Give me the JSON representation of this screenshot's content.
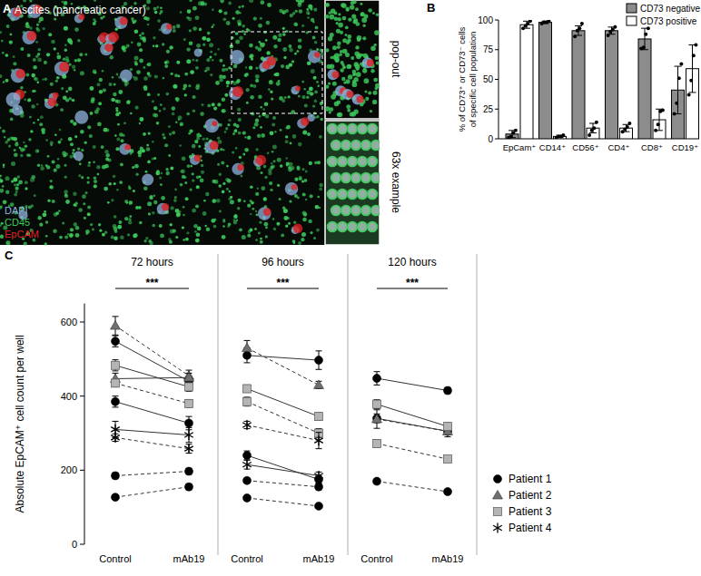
{
  "image_panel": {
    "letter": "A",
    "title": "Ascites (pancreatic cancer)",
    "insets": [
      "pop-out",
      "63x example"
    ],
    "stains": [
      {
        "label": "DAPI",
        "color": "#8fb4e0"
      },
      {
        "label": "CD45",
        "color": "#3cc85a"
      },
      {
        "label": "EpCAM",
        "color": "#e02020"
      }
    ]
  },
  "chart_data": [
    {
      "type": "bar",
      "panel": "B",
      "ylabel": [
        "% of CD73⁺ or CD73⁻ cells",
        "of specific cell population"
      ],
      "categories": [
        "EpCam⁺",
        "CD14⁺",
        "CD56⁺",
        "CD4⁺",
        "CD8⁺",
        "CD19⁺"
      ],
      "ylim": [
        0,
        100
      ],
      "yticks": [
        0,
        25,
        50,
        75,
        100
      ],
      "grid": false,
      "legend": "top-right",
      "series": [
        {
          "name": "CD73 negative",
          "color": "#8c8c8c",
          "values": [
            4,
            98,
            91,
            91,
            84,
            41
          ],
          "errors": [
            3,
            1,
            4,
            3,
            9,
            20
          ],
          "points": [
            [
              1,
              2,
              5,
              7
            ],
            [
              97,
              98,
              98,
              99
            ],
            [
              86,
              91,
              93,
              97
            ],
            [
              87,
              90,
              92,
              94
            ],
            [
              76,
              77,
              88,
              93
            ],
            [
              21,
              30,
              51,
              63
            ]
          ]
        },
        {
          "name": "CD73 positive",
          "color": "#ffffff",
          "values": [
            96,
            2,
            9,
            9,
            16,
            59
          ],
          "errors": [
            3,
            1,
            4,
            3,
            9,
            20
          ],
          "points": [
            [
              93,
              95,
              97,
              99
            ],
            [
              1,
              2,
              2,
              3
            ],
            [
              3,
              7,
              9,
              14
            ],
            [
              6,
              8,
              10,
              13
            ],
            [
              7,
              12,
              23,
              24
            ],
            [
              37,
              49,
              70,
              79
            ]
          ]
        }
      ]
    },
    {
      "type": "line",
      "panel": "C",
      "ylabel": "Absolute EpCAM⁺ cell count per well",
      "categories": [
        "Control",
        "mAb19"
      ],
      "ylim": [
        0,
        650
      ],
      "yticks": [
        0,
        200,
        400,
        600
      ],
      "grid": false,
      "legend": "right",
      "facets": [
        {
          "title": "72 hours",
          "annotation": "***",
          "series": [
            {
              "name": "Patient 1",
              "marker": "circle",
              "color": "#000000",
              "line_style": "solid",
              "values": [
                548,
                440
              ],
              "errors": [
                15,
                12
              ]
            },
            {
              "name": "Patient 1",
              "marker": "circle",
              "color": "#000000",
              "line_style": "solid",
              "values": [
                385,
                327
              ],
              "errors": [
                15,
                18
              ]
            },
            {
              "name": "Patient 1",
              "marker": "circle",
              "color": "#000000",
              "line_style": "dashed",
              "values": [
                185,
                197
              ],
              "errors": [
                8,
                8
              ]
            },
            {
              "name": "Patient 1",
              "marker": "circle",
              "color": "#000000",
              "line_style": "dashed",
              "values": [
                127,
                155
              ],
              "errors": [
                6,
                8
              ]
            },
            {
              "name": "Patient 2",
              "marker": "triangle",
              "color": "#707070",
              "line_style": "dashed",
              "values": [
                590,
                455
              ],
              "errors": [
                25,
                15
              ]
            },
            {
              "name": "Patient 2",
              "marker": "triangle",
              "color": "#707070",
              "line_style": "solid",
              "values": [
                447,
                450
              ],
              "errors": [
                15,
                12
              ]
            },
            {
              "name": "Patient 3",
              "marker": "square",
              "color": "#b4b4b4",
              "line_style": "solid",
              "values": [
                483,
                425
              ],
              "errors": [
                15,
                12
              ]
            },
            {
              "name": "Patient 3",
              "marker": "square",
              "color": "#b4b4b4",
              "line_style": "dashed",
              "values": [
                435,
                380
              ],
              "errors": [
                10,
                10
              ]
            },
            {
              "name": "Patient 4",
              "marker": "asterisk",
              "color": "#000000",
              "line_style": "solid",
              "values": [
                310,
                295
              ],
              "errors": [
                22,
                20
              ]
            },
            {
              "name": "Patient 4",
              "marker": "asterisk",
              "color": "#000000",
              "line_style": "dashed",
              "values": [
                288,
                258
              ],
              "errors": [
                10,
                12
              ]
            }
          ]
        },
        {
          "title": "96 hours",
          "annotation": "***",
          "series": [
            {
              "name": "Patient 1",
              "marker": "circle",
              "color": "#000000",
              "line_style": "solid",
              "values": [
                510,
                497
              ],
              "errors": [
                20,
                25
              ]
            },
            {
              "name": "Patient 1",
              "marker": "circle",
              "color": "#000000",
              "line_style": "solid",
              "values": [
                240,
                175
              ],
              "errors": [
                12,
                10
              ]
            },
            {
              "name": "Patient 1",
              "marker": "circle",
              "color": "#000000",
              "line_style": "dashed",
              "values": [
                172,
                155
              ],
              "errors": [
                6,
                8
              ]
            },
            {
              "name": "Patient 1",
              "marker": "circle",
              "color": "#000000",
              "line_style": "dashed",
              "values": [
                125,
                103
              ],
              "errors": [
                6,
                6
              ]
            },
            {
              "name": "Patient 2",
              "marker": "triangle",
              "color": "#707070",
              "line_style": "dashed",
              "values": [
                530,
                430
              ],
              "errors": [
                20,
                10
              ]
            },
            {
              "name": "Patient 3",
              "marker": "square",
              "color": "#b4b4b4",
              "line_style": "solid",
              "values": [
                420,
                345
              ],
              "errors": [
                10,
                10
              ]
            },
            {
              "name": "Patient 3",
              "marker": "square",
              "color": "#b4b4b4",
              "line_style": "dashed",
              "values": [
                385,
                300
              ],
              "errors": [
                12,
                12
              ]
            },
            {
              "name": "Patient 4",
              "marker": "asterisk",
              "color": "#000000",
              "line_style": "dashed",
              "values": [
                322,
                280
              ],
              "errors": [
                10,
                22
              ]
            },
            {
              "name": "Patient 4",
              "marker": "asterisk",
              "color": "#000000",
              "line_style": "solid",
              "values": [
                215,
                185
              ],
              "errors": [
                12,
                10
              ]
            }
          ]
        },
        {
          "title": "120 hours",
          "annotation": "***",
          "series": [
            {
              "name": "Patient 1",
              "marker": "circle",
              "color": "#000000",
              "line_style": "solid",
              "values": [
                448,
                415
              ],
              "errors": [
                18,
                8
              ]
            },
            {
              "name": "Patient 1",
              "marker": "circle",
              "color": "#000000",
              "line_style": "solid",
              "values": [
                340,
                305
              ],
              "errors": [
                12,
                10
              ]
            },
            {
              "name": "Patient 1",
              "marker": "circle",
              "color": "#000000",
              "line_style": "dashed",
              "values": [
                170,
                142
              ],
              "errors": [
                6,
                6
              ]
            },
            {
              "name": "Patient 2",
              "marker": "triangle",
              "color": "#707070",
              "line_style": "dashed",
              "values": [
                338,
                305
              ],
              "errors": [
                25,
                15
              ]
            },
            {
              "name": "Patient 3",
              "marker": "square",
              "color": "#b4b4b4",
              "line_style": "solid",
              "values": [
                378,
                318
              ],
              "errors": [
                12,
                10
              ]
            },
            {
              "name": "Patient 3",
              "marker": "square",
              "color": "#b4b4b4",
              "line_style": "dashed",
              "values": [
                272,
                230
              ],
              "errors": [
                10,
                8
              ]
            }
          ]
        }
      ]
    }
  ]
}
